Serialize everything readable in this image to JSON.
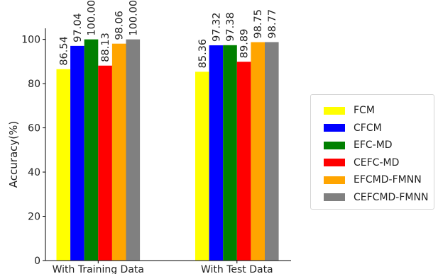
{
  "chart_data": {
    "type": "bar",
    "categories": [
      "With Training Data",
      "With Test Data"
    ],
    "series": [
      {
        "name": "FCM",
        "color": "#ffff00",
        "values": [
          86.54,
          85.36
        ],
        "labels": [
          "86.54",
          "85.36"
        ]
      },
      {
        "name": "CFCM",
        "color": "#0000ff",
        "values": [
          97.04,
          97.32
        ],
        "labels": [
          "97.04",
          "97.32"
        ]
      },
      {
        "name": "EFC-MD",
        "color": "#008000",
        "values": [
          100.0,
          97.38
        ],
        "labels": [
          "100.00",
          "97.38"
        ]
      },
      {
        "name": "CEFC-MD",
        "color": "#ff0000",
        "values": [
          88.13,
          89.89
        ],
        "labels": [
          "88.13",
          "89.89"
        ]
      },
      {
        "name": "EFCMD-FMNN",
        "color": "#ffa500",
        "values": [
          98.06,
          98.75
        ],
        "labels": [
          "98.06",
          "98.75"
        ]
      },
      {
        "name": "CEFCMD-FMNN",
        "color": "#808080",
        "values": [
          100.0,
          98.77
        ],
        "labels": [
          "100.00",
          "98.77"
        ]
      }
    ],
    "title": "",
    "xlabel": "",
    "ylabel": "Accuracy(%)",
    "ylim": [
      0,
      105
    ],
    "yticks": [
      "0",
      "20",
      "40",
      "60",
      "80",
      "100"
    ],
    "grid": false,
    "legend_position": "right"
  }
}
